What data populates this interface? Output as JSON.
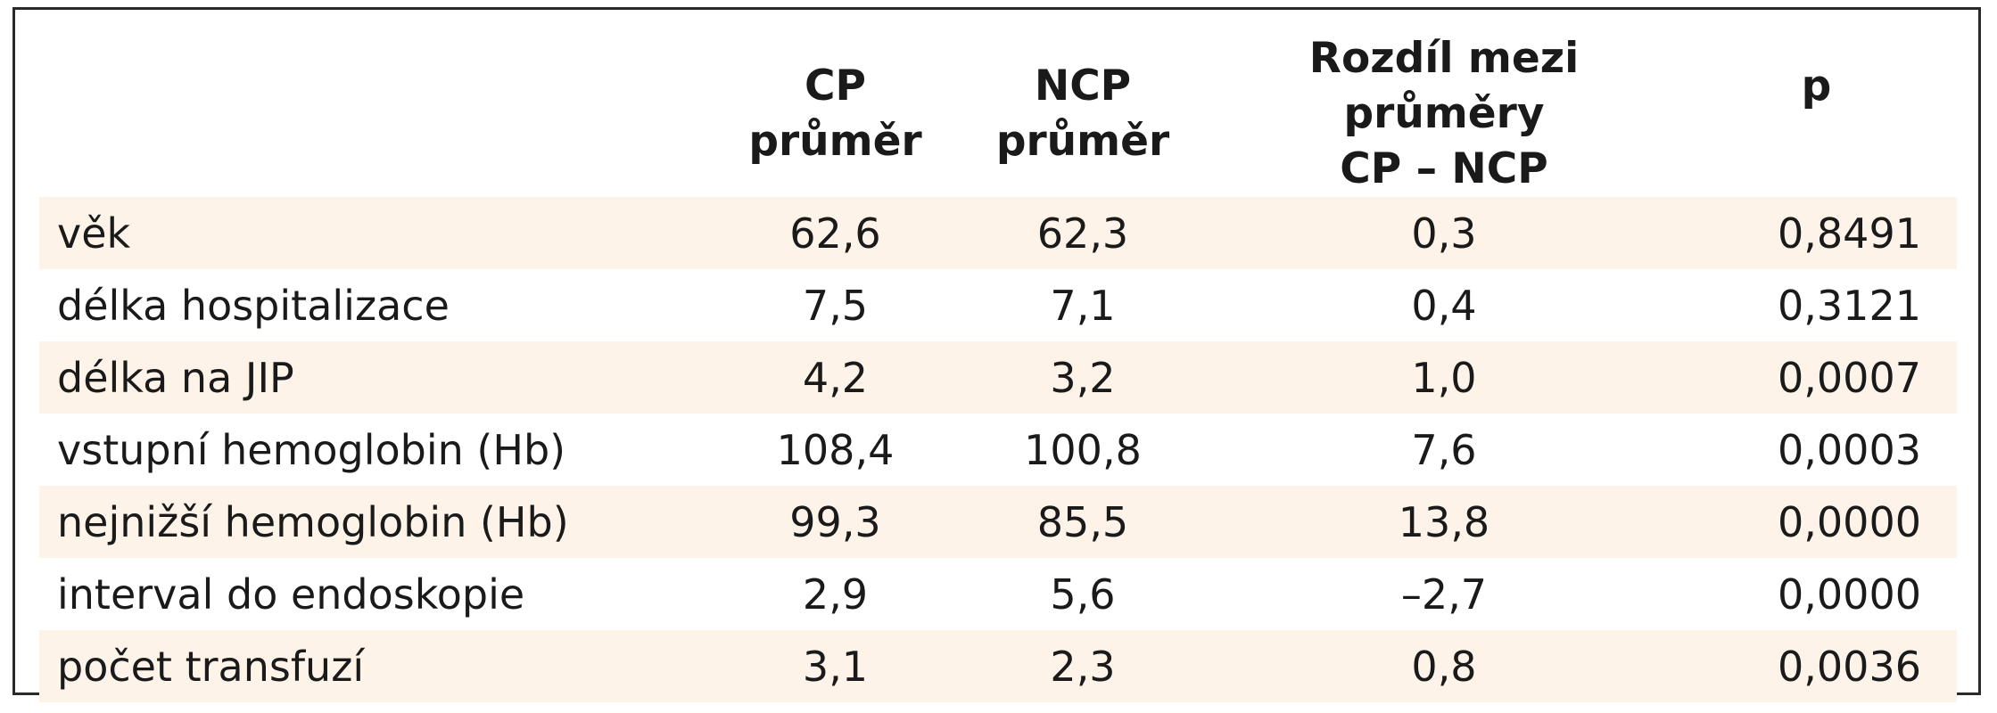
{
  "table": {
    "headers": [
      {
        "line1": "",
        "line2": ""
      },
      {
        "line1": "CP",
        "line2": "průměr"
      },
      {
        "line1": "NCP",
        "line2": "průměr"
      },
      {
        "line1": "Rozdíl mezi průměry",
        "line2": "CP – NCP"
      },
      {
        "line1": "p",
        "line2": ""
      }
    ],
    "rows": [
      {
        "label": "věk",
        "cp": "62,6",
        "ncp": "62,3",
        "diff": "0,3",
        "p": "0,8491"
      },
      {
        "label": "délka hospitalizace",
        "cp": "7,5",
        "ncp": "7,1",
        "diff": "0,4",
        "p": "0,3121"
      },
      {
        "label": "délka na JIP",
        "cp": "4,2",
        "ncp": "3,2",
        "diff": "1,0",
        "p": "0,0007"
      },
      {
        "label": "vstupní hemoglobin (Hb)",
        "cp": "108,4",
        "ncp": "100,8",
        "diff": "7,6",
        "p": "0,0003"
      },
      {
        "label": "nejnižší hemoglobin (Hb)",
        "cp": "99,3",
        "ncp": "85,5",
        "diff": "13,8",
        "p": "0,0000"
      },
      {
        "label": "interval do endoskopie",
        "cp": "2,9",
        "ncp": "5,6",
        "diff": "–2,7",
        "p": "0,0000"
      },
      {
        "label": "počet transfuzí",
        "cp": "3,1",
        "ncp": "2,3",
        "diff": "0,8",
        "p": "0,0036"
      }
    ]
  },
  "colors": {
    "row_shade": "#fdf3e8",
    "border": "#2a2a2a",
    "text": "#1a1a1a"
  }
}
